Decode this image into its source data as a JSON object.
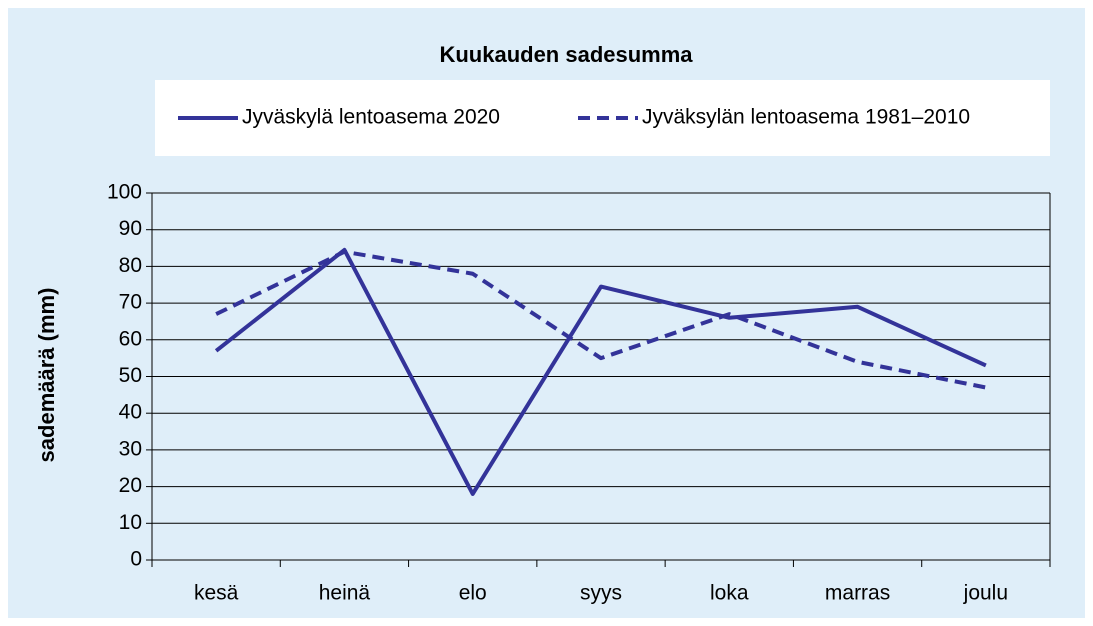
{
  "chart_data": {
    "type": "line",
    "title": "Kuukauden sadesumma",
    "ylabel": "sademäärä (mm)",
    "categories": [
      "kesä",
      "heinä",
      "elo",
      "syys",
      "loka",
      "marras",
      "joulu"
    ],
    "series": [
      {
        "name": "Jyväskylä lentoasema 2020",
        "color": "#333399",
        "style": "solid",
        "values": [
          57,
          84.5,
          18,
          74.5,
          66,
          69,
          53
        ]
      },
      {
        "name": "Jyväksylän lentoasema 1981–2010",
        "color": "#333399",
        "style": "dashed",
        "values": [
          67,
          84,
          78,
          55,
          67,
          54,
          47
        ]
      }
    ],
    "ylim": [
      0,
      100
    ],
    "yticks": [
      0,
      10,
      20,
      30,
      40,
      50,
      60,
      70,
      80,
      90,
      100
    ],
    "grid": true
  }
}
